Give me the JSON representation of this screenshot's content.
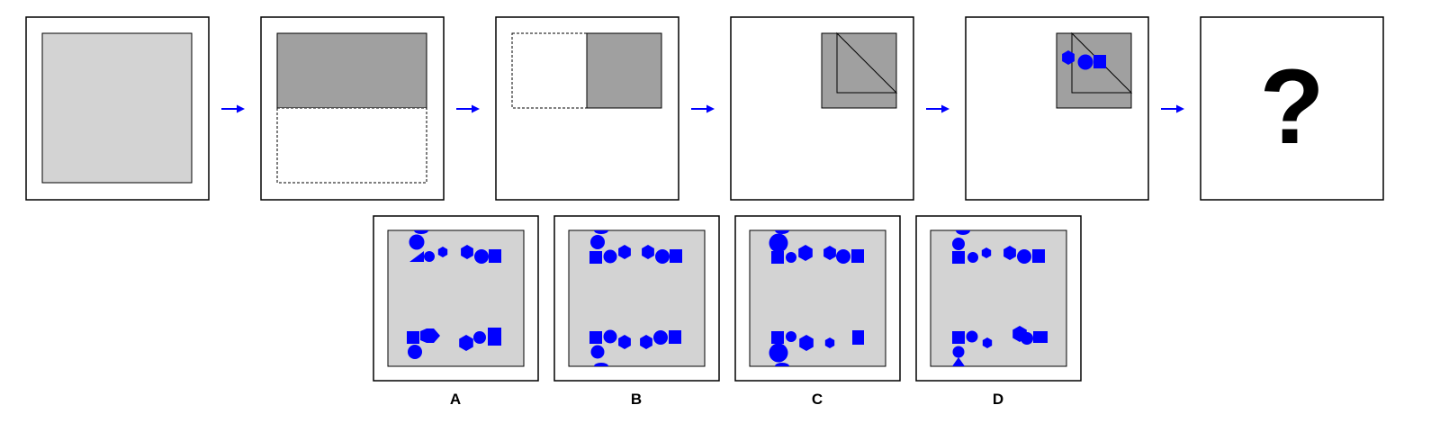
{
  "sequence": {
    "steps": [
      "full-sheet",
      "fold-top",
      "fold-right",
      "fold-diagonal",
      "punch-holes",
      "unknown"
    ],
    "unknown_symbol": "?"
  },
  "options": [
    {
      "label": "A"
    },
    {
      "label": "B"
    },
    {
      "label": "C"
    },
    {
      "label": "D"
    }
  ],
  "colors": {
    "sheet": "#d3d3d3",
    "folded": "#a0a0a0",
    "hole": "#0000ff",
    "arrow": "#0000ff",
    "outline": "#000000"
  }
}
